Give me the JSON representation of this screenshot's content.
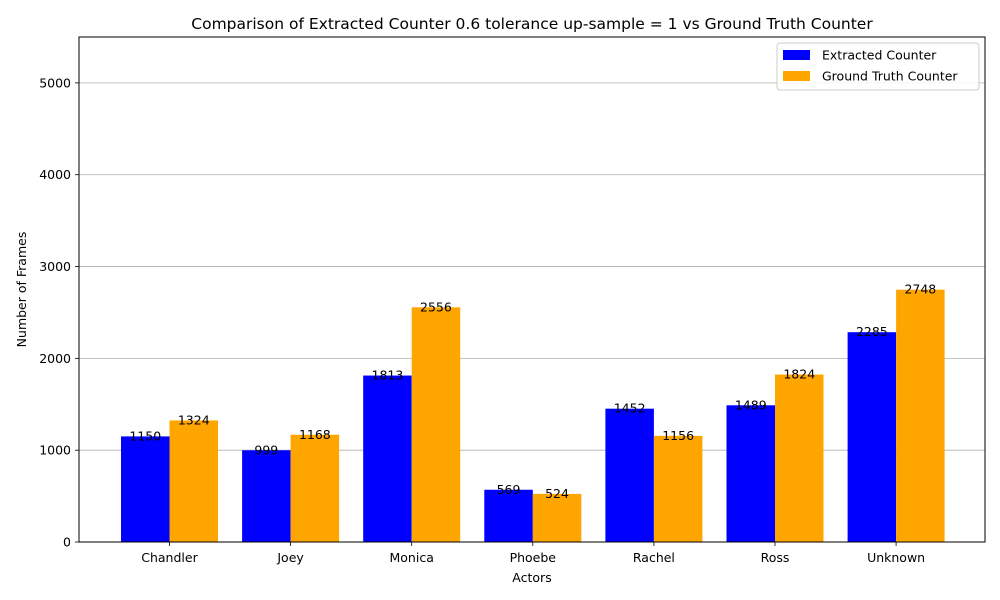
{
  "chart_data": {
    "type": "bar",
    "title": "Comparison of Extracted Counter 0.6 tolerance up-sample = 1 vs Ground Truth Counter",
    "xlabel": "Actors",
    "ylabel": "Number of Frames",
    "categories": [
      "Chandler",
      "Joey",
      "Monica",
      "Phoebe",
      "Rachel",
      "Ross",
      "Unknown"
    ],
    "series": [
      {
        "name": "Extracted Counter",
        "color": "#0000ff",
        "values": [
          1150,
          999,
          1813,
          569,
          1452,
          1489,
          2285
        ]
      },
      {
        "name": "Ground Truth Counter",
        "color": "#ffa500",
        "values": [
          1324,
          1168,
          2556,
          524,
          1156,
          1824,
          2748
        ]
      }
    ],
    "ylim": [
      0,
      5500
    ],
    "yticks": [
      0,
      1000,
      2000,
      3000,
      4000,
      5000
    ],
    "grid": "horizontal",
    "legend_position": "top-right"
  }
}
